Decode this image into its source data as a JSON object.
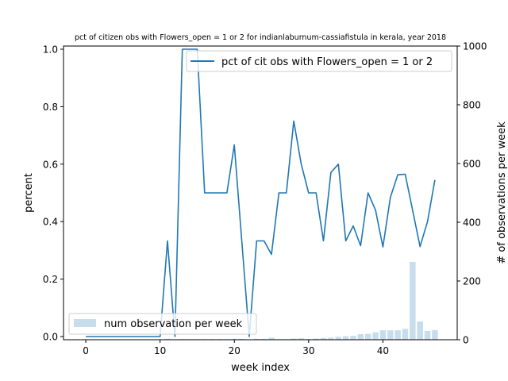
{
  "chart_data": {
    "type": "line",
    "title": "pct of citizen obs with Flowers_open = 1 or 2 for indianlaburnum-cassiafistula in kerala, year 2018",
    "xlabel": "week index",
    "ylabel": "percent",
    "ylabel_right": "# of observations per week",
    "xlim": [
      -3,
      50
    ],
    "ylim": [
      0,
      1.0
    ],
    "ylim_right": [
      0,
      1000
    ],
    "xticks": [
      "0",
      "10",
      "20",
      "30",
      "40"
    ],
    "yticks_left": [
      "0.0",
      "0.2",
      "0.4",
      "0.6",
      "0.8",
      "1.0"
    ],
    "yticks_right": [
      "0",
      "200",
      "400",
      "600",
      "800",
      "1000"
    ],
    "series": [
      {
        "name": "pct of cit obs with Flowers_open = 1 or 2",
        "axis": "left",
        "kind": "line",
        "color": "#1f77b4",
        "x": [
          0,
          1,
          2,
          3,
          4,
          5,
          6,
          7,
          8,
          9,
          10,
          11,
          12,
          13,
          14,
          15,
          16,
          17,
          18,
          19,
          20,
          21,
          22,
          23,
          24,
          25,
          26,
          27,
          28,
          29,
          30,
          31,
          32,
          33,
          34,
          35,
          36,
          37,
          38,
          39,
          40,
          41,
          42,
          43,
          44,
          45,
          46,
          47
        ],
        "values": [
          0,
          0,
          0,
          0,
          0,
          0,
          0,
          0,
          0,
          0,
          0,
          0.333,
          0,
          1.0,
          1.0,
          1.0,
          0.5,
          0.5,
          0.5,
          0.5,
          0.667,
          0.333,
          0,
          0.333,
          0.333,
          0.286,
          0.5,
          0.5,
          0.75,
          0.6,
          0.5,
          0.5,
          0.333,
          0.571,
          0.6,
          0.333,
          0.385,
          0.316,
          0.5,
          0.44,
          0.312,
          0.484,
          0.563,
          0.565,
          0.44,
          0.313,
          0.4,
          0.545
        ]
      },
      {
        "name": "num observation per week",
        "axis": "right",
        "kind": "bar",
        "color": "#1f77b4",
        "opacity": 0.25,
        "x": [
          0,
          1,
          2,
          3,
          4,
          5,
          6,
          7,
          8,
          9,
          10,
          11,
          12,
          13,
          14,
          15,
          16,
          17,
          18,
          19,
          20,
          21,
          22,
          23,
          24,
          25,
          26,
          27,
          28,
          29,
          30,
          31,
          32,
          33,
          34,
          35,
          36,
          37,
          38,
          39,
          40,
          41,
          42,
          43,
          44,
          45,
          46,
          47
        ],
        "values": [
          0,
          0,
          0,
          0,
          0,
          0,
          0,
          0,
          0,
          0,
          1,
          3,
          1,
          2,
          2,
          2,
          2,
          2,
          2,
          2,
          3,
          3,
          1,
          3,
          3,
          7,
          2,
          2,
          4,
          5,
          2,
          4,
          6,
          7,
          10,
          12,
          13,
          19,
          20,
          25,
          32,
          32,
          32,
          37,
          265,
          62,
          30,
          33
        ]
      }
    ],
    "legends": [
      {
        "placement": "upper-right",
        "entries": [
          "pct of cit obs with Flowers_open = 1 or 2"
        ]
      },
      {
        "placement": "lower-left",
        "entries": [
          "num observation per week"
        ]
      }
    ]
  }
}
